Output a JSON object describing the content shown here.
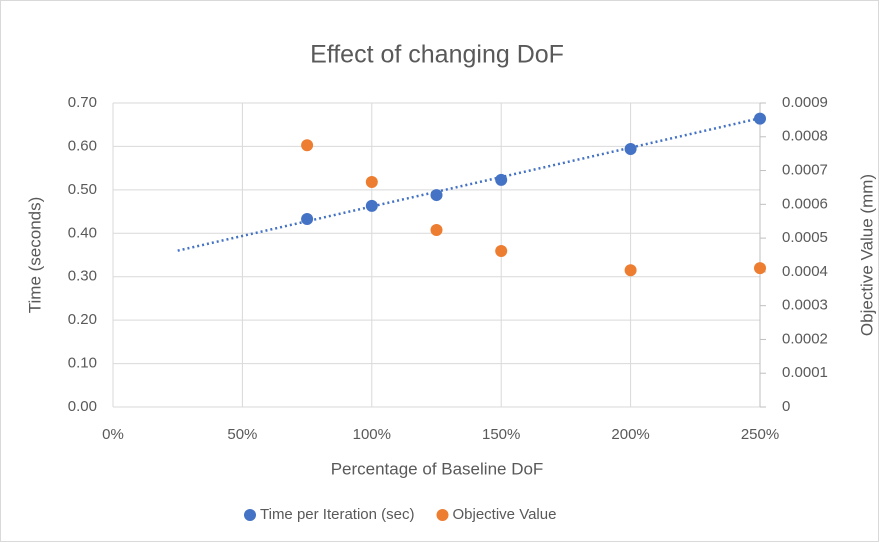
{
  "chart_data": {
    "type": "scatter",
    "title": "Effect of changing DoF",
    "x_label": "Percentage of Baseline DoF",
    "y_label": "Time (seconds)",
    "y2_label": "Objective Value (mm)",
    "xlim": [
      0,
      250
    ],
    "xticks": [
      {
        "value": 0,
        "label": "0%"
      },
      {
        "value": 50,
        "label": "50%"
      },
      {
        "value": 100,
        "label": "100%"
      },
      {
        "value": 150,
        "label": "150%"
      },
      {
        "value": 200,
        "label": "200%"
      },
      {
        "value": 250,
        "label": "250%"
      }
    ],
    "ylim": [
      0,
      0.7
    ],
    "yticks": [
      {
        "value": 0,
        "label": "0.00"
      },
      {
        "value": 0.1,
        "label": "0.10"
      },
      {
        "value": 0.2,
        "label": "0.20"
      },
      {
        "value": 0.3,
        "label": "0.30"
      },
      {
        "value": 0.4,
        "label": "0.40"
      },
      {
        "value": 0.5,
        "label": "0.50"
      },
      {
        "value": 0.6,
        "label": "0.60"
      },
      {
        "value": 0.7,
        "label": "0.70"
      }
    ],
    "y2lim": [
      0,
      0.0009
    ],
    "y2ticks": [
      0,
      0.0001,
      0.0002,
      0.0003,
      0.0004,
      0.0005,
      0.0006,
      0.0007,
      0.0008,
      0.0009
    ],
    "grid": true,
    "legend": "bottom",
    "series": [
      {
        "name": "Time per Iteration (sec)",
        "color": "#4472c4",
        "x": [
          75,
          100,
          125,
          150,
          200,
          250
        ],
        "values": [
          0.433,
          0.463,
          0.488,
          0.523,
          0.594,
          0.664
        ]
      },
      {
        "name": "Objective Value",
        "color": "#ed7d31",
        "axis": "y2",
        "x": [
          75,
          100,
          125,
          150,
          200,
          250
        ],
        "values": [
          0.000775,
          0.000666,
          0.000524,
          0.000462,
          0.000405,
          0.000411
        ]
      }
    ],
    "trendline": {
      "color": "#4472c4",
      "x": [
        25,
        250
      ],
      "values": [
        0.36,
        0.665
      ]
    }
  }
}
